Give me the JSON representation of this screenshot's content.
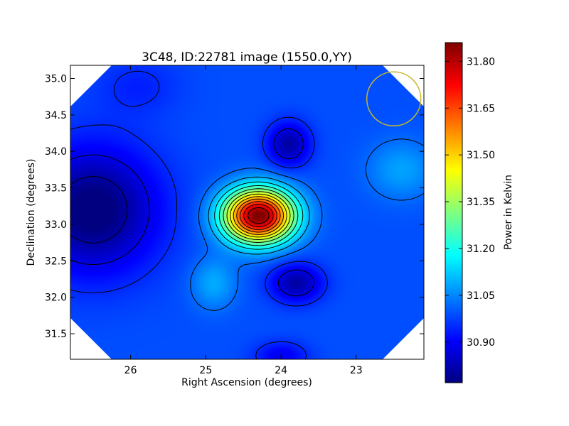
{
  "chart_data": {
    "type": "heatmap",
    "title": "3C48, ID:22781 image (1550.0,YY)",
    "xlabel": "Right Ascension (degrees)",
    "ylabel": "Declination (degrees)",
    "xlim": [
      26.8,
      22.1
    ],
    "ylim": [
      31.15,
      35.18
    ],
    "x_ticks": [
      26,
      25,
      24,
      23
    ],
    "x_tick_labels": [
      "26",
      "25",
      "24",
      "23"
    ],
    "y_ticks": [
      31.5,
      32.0,
      32.5,
      33.0,
      33.5,
      34.0,
      34.5,
      35.0
    ],
    "y_tick_labels": [
      "31.5",
      "32.0",
      "32.5",
      "33.0",
      "33.5",
      "34.0",
      "34.5",
      "35.0"
    ],
    "colorbar": {
      "label": "Power in Kelvin",
      "range": [
        30.77,
        31.86
      ],
      "ticks": [
        30.9,
        31.05,
        31.2,
        31.35,
        31.5,
        31.65,
        31.8
      ],
      "tick_labels": [
        "30.90",
        "31.05",
        "31.20",
        "31.35",
        "31.50",
        "31.65",
        "31.80"
      ],
      "colormap": "jet"
    },
    "features": [
      {
        "kind": "maximum",
        "ra": 24.3,
        "dec": 33.12,
        "value": 31.84
      },
      {
        "kind": "minimum",
        "ra": 26.6,
        "dec": 33.2,
        "value": 30.78
      },
      {
        "kind": "minimum",
        "ra": 23.9,
        "dec": 34.1,
        "value": 30.82
      },
      {
        "kind": "minimum",
        "ra": 23.8,
        "dec": 32.2,
        "value": 30.82
      },
      {
        "kind": "minimum",
        "ra": 24.0,
        "dec": 31.2,
        "value": 30.9
      },
      {
        "kind": "local-high",
        "ra": 22.4,
        "dec": 33.75,
        "value": 31.08
      },
      {
        "kind": "local-high",
        "ra": 24.9,
        "dec": 32.2,
        "value": 31.1
      }
    ],
    "beam_marker": {
      "ra": 22.5,
      "dec": 34.72,
      "radius_deg": 0.37,
      "color": "#c8b82a"
    },
    "grid": false
  }
}
